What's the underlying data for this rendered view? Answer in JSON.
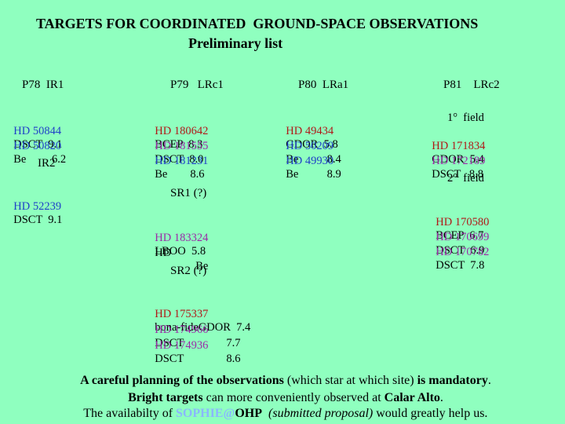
{
  "title_line1": "TARGETS FOR COORDINATED  GROUND-SPACE OBSERVATIONS",
  "title_line2": "Preliminary list",
  "columns": {
    "p78": "P78  IR1",
    "p79": "P79   LRc1",
    "p80": "P80  LRa1",
    "p81": "P81    LRc2"
  },
  "p78": {
    "rows": [
      {
        "hd": "HD 50844",
        "rest": "DSCT  9.1"
      },
      {
        "hd": "HD 50820",
        "rest": "Be         6.2"
      }
    ],
    "ir2_label": "IR2",
    "ir2_row": {
      "hd": "HD 52239",
      "rest": "DSCT  9.1"
    }
  },
  "p79": {
    "rows": [
      {
        "hd": "HD 180642",
        "rest": "BCEP  8.3"
      },
      {
        "hd": "HD 181555",
        "rest": "DSCT  8.0"
      },
      {
        "hd": "HD 181231",
        "rest": "Be        8.6"
      }
    ],
    "sr1_label": "SR1 (?)",
    "sr1_rows": [
      {
        "hd": "HD 183324",
        "rest": "LBOO  5.8"
      },
      {
        "hd": "HD",
        "rest": "Be"
      }
    ],
    "sr2_label": "SR2 (?)",
    "sr2_rows": [
      {
        "hd": "HD 175337",
        "rest": "bona-fideGDOR  7.4"
      },
      {
        "hd": "HD 174966",
        "rest": "DSCT               7.7"
      },
      {
        "hd": "HD 174936",
        "rest": "DSCT               8.6"
      }
    ]
  },
  "p80": {
    "rows": [
      {
        "hd": "HD 49434",
        "rest": "GDOR  5.8"
      },
      {
        "hd": "HD 50209",
        "rest": "Be          8.4"
      },
      {
        "hd": "HD 49930",
        "rest": "Be          8.9"
      }
    ]
  },
  "p81": {
    "field1": "1°  field",
    "rows1": [
      {
        "hd": "HD 171834",
        "rest": "GDOR  5.4"
      },
      {
        "hd": "HD 172189",
        "rest": "DSCT   8.8"
      }
    ],
    "field2": "2°  field",
    "rows2": [
      {
        "hd": "HD 170580",
        "rest": "BCEP  6.7"
      },
      {
        "hd": "HD 170699",
        "rest": "DSCT  6.9"
      },
      {
        "hd": "HD 170782",
        "rest": "DSCT  7.8"
      }
    ]
  },
  "footer": {
    "l1_a": "A careful planning of the observations",
    "l1_b": " (which star at which site) ",
    "l1_c": "is mandatory",
    "l1_d": ".",
    "l2_a": "Bright targets",
    "l2_b": " can more conveniently observed at ",
    "l2_c": "Calar Alto",
    "l2_d": ".",
    "l3_a": "The availabilty of ",
    "l3_link": "SOPHIE@",
    "l3_b": "OHP",
    "l3_c": "  (submitted proposal)",
    "l3_d": " would greatly help us."
  },
  "colors": {
    "background": "#8fffbf",
    "hd_blue": "#1f3fc8",
    "hd_red": "#b01818",
    "hd_purple": "#9a2aa8",
    "link": "#8ab7ff"
  }
}
